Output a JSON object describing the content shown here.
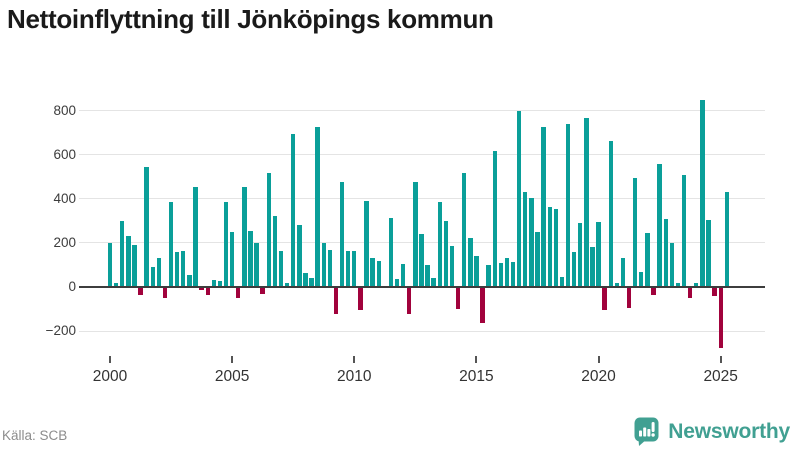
{
  "title": "Nettoinflyttning till Jönköpings kommun",
  "source": "Källa: SCB",
  "logo": {
    "text": "Newsworthy"
  },
  "colors": {
    "positive": "#0a9f99",
    "negative": "#a1023c",
    "grid": "#e4e4e4",
    "axis": "#3d3d3d",
    "title": "#1a1a1a",
    "tick_text": "#3c3c3c",
    "source_text": "#8c8c8c",
    "logo": "#41a092"
  },
  "chart_data": {
    "type": "bar",
    "title": "Nettoinflyttning till Jönköpings kommun",
    "xlabel": "",
    "ylabel": "",
    "grid": "horizontal",
    "ylim": [
      -300,
      880
    ],
    "yticks": [
      -200,
      0,
      200,
      400,
      600,
      800
    ],
    "ytick_labels": [
      "−200",
      "0",
      "200",
      "400",
      "600",
      "800"
    ],
    "xticks": [
      2000,
      2005,
      2010,
      2015,
      2020,
      2025
    ],
    "categories": [
      "2000 Q1",
      "2000 Q2",
      "2000 Q3",
      "2000 Q4",
      "2001 Q1",
      "2001 Q2",
      "2001 Q3",
      "2001 Q4",
      "2002 Q1",
      "2002 Q2",
      "2002 Q3",
      "2002 Q4",
      "2003 Q1",
      "2003 Q2",
      "2003 Q3",
      "2003 Q4",
      "2004 Q1",
      "2004 Q2",
      "2004 Q3",
      "2004 Q4",
      "2005 Q1",
      "2005 Q2",
      "2005 Q3",
      "2005 Q4",
      "2006 Q1",
      "2006 Q2",
      "2006 Q3",
      "2006 Q4",
      "2007 Q1",
      "2007 Q2",
      "2007 Q3",
      "2007 Q4",
      "2008 Q1",
      "2008 Q2",
      "2008 Q3",
      "2008 Q4",
      "2009 Q1",
      "2009 Q2",
      "2009 Q3",
      "2009 Q4",
      "2010 Q1",
      "2010 Q2",
      "2010 Q3",
      "2010 Q4",
      "2011 Q1",
      "2011 Q2",
      "2011 Q3",
      "2011 Q4",
      "2012 Q1",
      "2012 Q2",
      "2012 Q3",
      "2012 Q4",
      "2013 Q1",
      "2013 Q2",
      "2013 Q3",
      "2013 Q4",
      "2014 Q1",
      "2014 Q2",
      "2014 Q3",
      "2014 Q4",
      "2015 Q1",
      "2015 Q2",
      "2015 Q3",
      "2015 Q4",
      "2016 Q1",
      "2016 Q2",
      "2016 Q3",
      "2016 Q4",
      "2017 Q1",
      "2017 Q2",
      "2017 Q3",
      "2017 Q4",
      "2018 Q1",
      "2018 Q2",
      "2018 Q3",
      "2018 Q4",
      "2019 Q1",
      "2019 Q2",
      "2019 Q3",
      "2019 Q4",
      "2020 Q1",
      "2020 Q2",
      "2020 Q3",
      "2020 Q4",
      "2021 Q1",
      "2021 Q2",
      "2021 Q3",
      "2021 Q4",
      "2022 Q1",
      "2022 Q2",
      "2022 Q3",
      "2022 Q4",
      "2023 Q1",
      "2023 Q2",
      "2023 Q3",
      "2023 Q4",
      "2024 Q1",
      "2024 Q2",
      "2024 Q3",
      "2024 Q4",
      "2025 Q1",
      "2025 Q2"
    ],
    "values": [
      200,
      20,
      300,
      230,
      190,
      -30,
      545,
      90,
      130,
      -45,
      385,
      160,
      165,
      55,
      455,
      -10,
      -30,
      30,
      25,
      385,
      250,
      -45,
      455,
      255,
      200,
      -25,
      515,
      320,
      165,
      20,
      695,
      280,
      65,
      40,
      725,
      200,
      170,
      -120,
      475,
      165,
      165,
      -100,
      390,
      130,
      120,
      0,
      315,
      35,
      105,
      -120,
      475,
      240,
      100,
      40,
      385,
      300,
      185,
      -95,
      515,
      220,
      140,
      -160,
      100,
      615,
      110,
      130,
      115,
      800,
      430,
      405,
      250,
      725,
      365,
      355,
      45,
      740,
      160,
      290,
      765,
      180,
      295,
      -100,
      660,
      20,
      130,
      -90,
      495,
      70,
      245,
      -30,
      560,
      310,
      200,
      20,
      510,
      -45,
      20,
      850,
      305,
      -35,
      -270,
      430
    ]
  }
}
